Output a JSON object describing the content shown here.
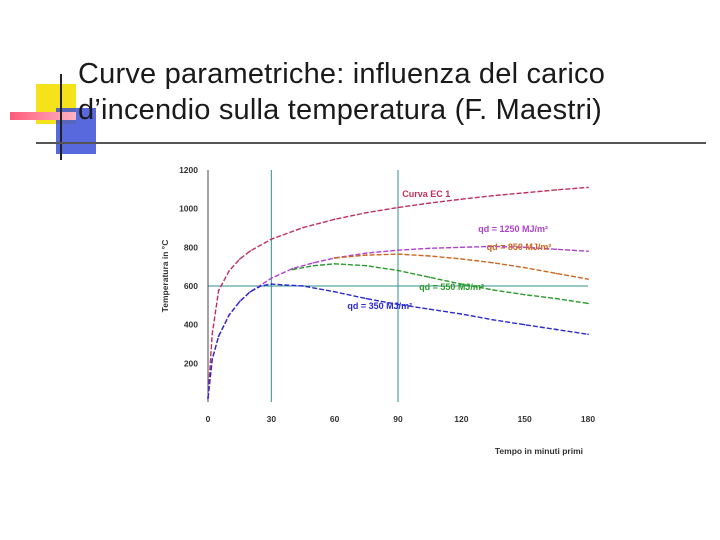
{
  "title": {
    "line1": "Curve parametriche: influenza del carico",
    "line2": "d’incendio sulla temperatura (F. Maestri)"
  },
  "colors": {
    "ec1": "#c0305a",
    "q1250": "#b040d0",
    "q850": "#cc6622",
    "q550": "#2a9a2a",
    "q350": "#2a2ad0",
    "grid": "#2f8f8f",
    "deco_yellow": "#f5e21a",
    "deco_blue": "#3b4fd8",
    "deco_pink": "#ff5b7a"
  },
  "chart_data": {
    "type": "line",
    "xlabel": "Tempo in minuti primi",
    "ylabel": "Temperatura in °C",
    "xlim": [
      0,
      180
    ],
    "ylim": [
      0,
      1200
    ],
    "xticks": [
      "0",
      "30",
      "60",
      "90",
      "120",
      "150",
      "180"
    ],
    "yticks": [
      "200",
      "400",
      "600",
      "800",
      "1000",
      "1200"
    ],
    "grid": "vertical at 30 and 90, horizontal at 600",
    "series": [
      {
        "name": "Curva EC 1",
        "color": "#c0305a",
        "x": [
          0,
          2,
          5,
          10,
          15,
          20,
          30,
          45,
          60,
          75,
          90,
          105,
          120,
          135,
          150,
          165,
          180
        ],
        "y": [
          20,
          350,
          576,
          678,
          739,
          781,
          842,
          902,
          945,
          979,
          1006,
          1029,
          1049,
          1067,
          1082,
          1097,
          1110
        ]
      },
      {
        "name": "qd = 1250 MJ/m²",
        "color": "#b040d0",
        "x": [
          0,
          2,
          5,
          10,
          15,
          20,
          30,
          40,
          50,
          60,
          75,
          90,
          105,
          120,
          135,
          150,
          165,
          180
        ],
        "y": [
          20,
          220,
          340,
          450,
          520,
          570,
          640,
          690,
          720,
          745,
          770,
          785,
          795,
          800,
          805,
          800,
          790,
          780
        ]
      },
      {
        "name": "qd = 850 MJ/m²",
        "color": "#cc6622",
        "x": [
          60,
          75,
          90,
          105,
          120,
          135,
          150,
          165,
          180
        ],
        "y": [
          745,
          760,
          765,
          755,
          740,
          720,
          695,
          665,
          635
        ]
      },
      {
        "name": "qd = 550 MJ/m²",
        "color": "#2a9a2a",
        "x": [
          40,
          50,
          60,
          75,
          90,
          105,
          120,
          135,
          150,
          165,
          180
        ],
        "y": [
          685,
          705,
          715,
          705,
          680,
          645,
          610,
          580,
          555,
          535,
          510
        ]
      },
      {
        "name": "qd = 350 MJ/m²",
        "color": "#2a2ad0",
        "x": [
          0,
          2,
          5,
          10,
          15,
          20,
          25,
          30,
          45,
          60,
          75,
          90,
          105,
          120,
          135,
          150,
          165,
          180
        ],
        "y": [
          20,
          220,
          340,
          450,
          520,
          570,
          600,
          610,
          600,
          570,
          535,
          505,
          480,
          455,
          425,
          400,
          375,
          350
        ]
      }
    ],
    "annotations": [
      {
        "text": "Curva EC 1",
        "x": 92,
        "y": 1060,
        "color": "#c0305a"
      },
      {
        "text": "qd = 1250 MJ/m²",
        "x": 128,
        "y": 880,
        "color": "#b040d0"
      },
      {
        "text": "qd = 850 MJ/m²",
        "x": 132,
        "y": 785,
        "color": "#cc6622"
      },
      {
        "text": "qd = 550 MJ/m²",
        "x": 100,
        "y": 580,
        "color": "#2a9a2a"
      },
      {
        "text": "qd = 350 MJ/m²",
        "x": 66,
        "y": 480,
        "color": "#2a2ad0"
      }
    ]
  }
}
